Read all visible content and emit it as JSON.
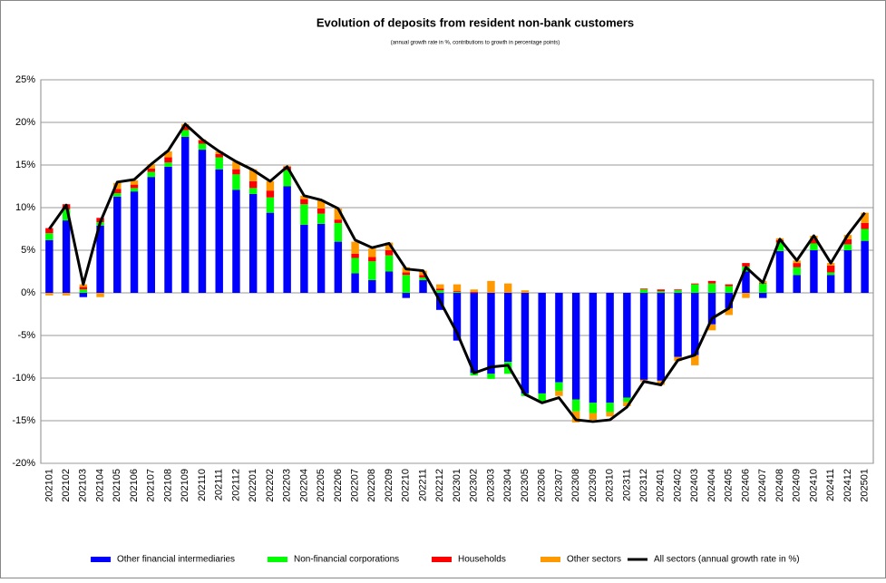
{
  "chart_data": {
    "type": "bar",
    "stacked": true,
    "title": "Evolution of deposits from resident non-bank customers",
    "subtitle": "(annual growth rate in %, contributions to growth in percentage points)",
    "categories": [
      "202101",
      "202102",
      "202103",
      "202104",
      "202105",
      "202106",
      "202107",
      "202108",
      "202109",
      "202110",
      "202111",
      "202112",
      "202201",
      "202202",
      "202203",
      "202204",
      "202205",
      "202206",
      "202207",
      "202208",
      "202209",
      "202210",
      "202211",
      "202212",
      "202301",
      "202302",
      "202303",
      "202304",
      "202305",
      "202306",
      "202307",
      "202308",
      "202309",
      "202310",
      "202311",
      "202312",
      "202401",
      "202402",
      "202403",
      "202404",
      "202405",
      "202406",
      "202407",
      "202408",
      "202409",
      "202410",
      "202411",
      "202412",
      "202501"
    ],
    "series": [
      {
        "name": "Other financial intermediaries",
        "color": "#0000ff",
        "values": [
          6.2,
          8.5,
          -0.5,
          7.9,
          11.3,
          11.9,
          13.6,
          14.8,
          18.3,
          16.8,
          14.5,
          12.1,
          11.6,
          9.4,
          12.5,
          8.0,
          8.1,
          6.0,
          2.3,
          1.5,
          2.5,
          -0.6,
          1.5,
          -2.0,
          -5.6,
          -9.4,
          -9.5,
          -8.1,
          -11.8,
          -11.8,
          -10.5,
          -12.5,
          -12.9,
          -12.9,
          -12.3,
          -10.2,
          -10.3,
          -7.5,
          -7.3,
          -3.7,
          -1.8,
          2.5,
          -0.6,
          4.9,
          2.1,
          5.0,
          2.1,
          5.0,
          6.1
        ]
      },
      {
        "name": "Non-financial corporations",
        "color": "#00ff00",
        "values": [
          0.8,
          1.3,
          0.4,
          0.4,
          0.4,
          0.4,
          0.6,
          0.5,
          0.8,
          0.7,
          1.4,
          1.8,
          0.7,
          1.8,
          1.9,
          2.4,
          1.2,
          2.2,
          1.8,
          2.2,
          1.9,
          2.1,
          0.3,
          0.3,
          0.1,
          -0.3,
          -0.6,
          -1.4,
          -0.3,
          -0.9,
          -1.0,
          -1.4,
          -1.2,
          -1.1,
          -0.5,
          0.4,
          0.2,
          0.3,
          1.0,
          1.1,
          0.8,
          0.6,
          1.1,
          1.0,
          0.9,
          0.8,
          0.3,
          0.7,
          1.4
        ]
      },
      {
        "name": "Households",
        "color": "#ff0000",
        "values": [
          0.6,
          0.6,
          0.3,
          0.5,
          0.5,
          0.4,
          0.4,
          0.6,
          0.4,
          0.4,
          0.4,
          0.6,
          0.8,
          0.8,
          0.4,
          0.6,
          0.6,
          0.4,
          0.5,
          0.5,
          0.6,
          0.3,
          0.3,
          0.2,
          0.1,
          0.1,
          0.0,
          0.0,
          0.0,
          0.0,
          0.0,
          0.0,
          0.0,
          0.0,
          0.0,
          0.1,
          0.2,
          0.1,
          0.1,
          0.3,
          0.2,
          0.4,
          0.1,
          0.3,
          0.5,
          0.5,
          0.8,
          0.6,
          0.7
        ]
      },
      {
        "name": "Other sectors",
        "color": "#ff9900",
        "values": [
          -0.3,
          -0.3,
          0.3,
          -0.5,
          0.7,
          0.5,
          0.5,
          0.7,
          0.3,
          0.1,
          0.3,
          0.9,
          1.4,
          1.1,
          0.1,
          0.4,
          1.0,
          1.3,
          1.4,
          1.0,
          0.9,
          0.6,
          0.5,
          0.5,
          0.8,
          0.3,
          1.4,
          1.1,
          0.3,
          0.0,
          -0.6,
          -1.3,
          -0.8,
          -0.5,
          -0.5,
          -0.2,
          -0.5,
          -0.5,
          -1.2,
          -0.7,
          -0.8,
          -0.6,
          0.2,
          0.2,
          0.3,
          0.4,
          0.3,
          0.5,
          1.2
        ]
      },
      {
        "name": "All sectors (annual growth rate in %)",
        "color": "#000000",
        "type": "line",
        "values": [
          7.5,
          10.3,
          1.0,
          8.3,
          13.0,
          13.3,
          15.1,
          16.7,
          19.8,
          18.0,
          16.6,
          15.4,
          14.4,
          13.1,
          14.8,
          11.4,
          10.9,
          9.9,
          6.2,
          5.3,
          5.8,
          2.8,
          2.6,
          -1.0,
          -4.7,
          -9.4,
          -8.7,
          -8.5,
          -11.9,
          -12.9,
          -12.3,
          -14.9,
          -15.1,
          -14.9,
          -13.4,
          -10.4,
          -10.8,
          -7.9,
          -7.3,
          -3.0,
          -1.8,
          3.0,
          1.2,
          6.3,
          3.8,
          6.7,
          3.5,
          6.8,
          9.4
        ]
      }
    ],
    "ylim": [
      -20,
      25
    ],
    "yticks": [
      {
        "value": -20,
        "label": "-20%"
      },
      {
        "value": -15,
        "label": "-15%"
      },
      {
        "value": -10,
        "label": "-10%"
      },
      {
        "value": -5,
        "label": "-5%"
      },
      {
        "value": 0,
        "label": "0%"
      },
      {
        "value": 5,
        "label": "5%"
      },
      {
        "value": 10,
        "label": "10%"
      },
      {
        "value": 15,
        "label": "15%"
      },
      {
        "value": 20,
        "label": "20%"
      },
      {
        "value": 25,
        "label": "25%"
      }
    ],
    "grid": true,
    "legend": "bottom"
  }
}
